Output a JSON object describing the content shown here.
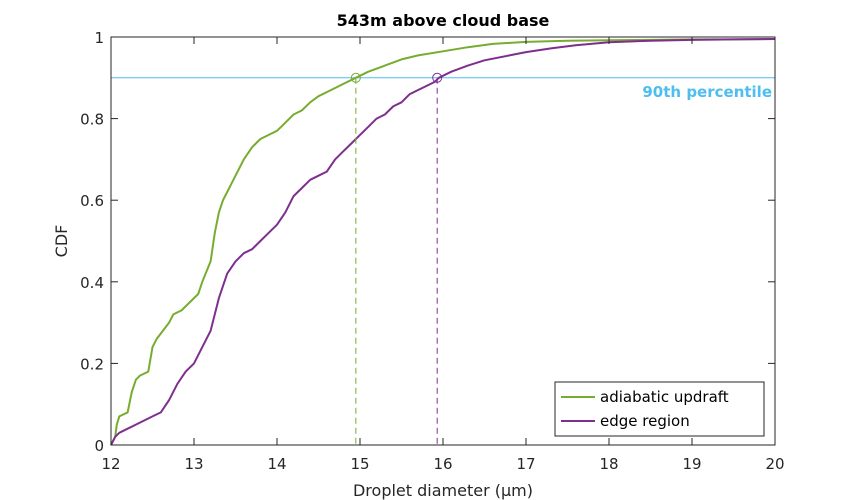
{
  "chart_data": {
    "type": "line",
    "title": "543m above cloud base",
    "xlabel": "Droplet diameter (μm)",
    "ylabel": "CDF",
    "xlim": [
      12,
      20
    ],
    "ylim": [
      0,
      1
    ],
    "xticks": [
      "12",
      "13",
      "14",
      "15",
      "16",
      "17",
      "18",
      "19",
      "20"
    ],
    "yticks": [
      "0",
      "0.2",
      "0.4",
      "0.6",
      "0.8",
      "1"
    ],
    "grid": false,
    "legend_position": "bottom-right",
    "series": [
      {
        "name": "adiabatic updraft",
        "color": "#77ac30",
        "x": [
          12.0,
          12.05,
          12.07,
          12.1,
          12.2,
          12.25,
          12.3,
          12.35,
          12.45,
          12.5,
          12.55,
          12.7,
          12.75,
          12.85,
          13.0,
          13.05,
          13.1,
          13.2,
          13.25,
          13.3,
          13.35,
          13.4,
          13.45,
          13.5,
          13.6,
          13.7,
          13.8,
          13.9,
          14.0,
          14.05,
          14.1,
          14.2,
          14.3,
          14.4,
          14.5,
          14.6,
          14.7,
          14.8,
          14.9,
          14.95,
          15.1,
          15.3,
          15.5,
          15.7,
          16.0,
          16.3,
          16.6,
          17.0,
          17.5,
          18.0,
          18.5,
          19.0,
          19.5,
          20.0
        ],
        "y": [
          0.0,
          0.02,
          0.05,
          0.07,
          0.08,
          0.13,
          0.16,
          0.17,
          0.18,
          0.24,
          0.26,
          0.3,
          0.32,
          0.33,
          0.36,
          0.37,
          0.4,
          0.45,
          0.52,
          0.57,
          0.6,
          0.62,
          0.64,
          0.66,
          0.7,
          0.73,
          0.75,
          0.76,
          0.77,
          0.78,
          0.79,
          0.81,
          0.82,
          0.84,
          0.855,
          0.865,
          0.875,
          0.885,
          0.895,
          0.9,
          0.915,
          0.93,
          0.945,
          0.955,
          0.965,
          0.975,
          0.983,
          0.988,
          0.991,
          0.992,
          0.993,
          0.994,
          0.994,
          0.995
        ],
        "percentile_90_x": 14.95
      },
      {
        "name": "edge region",
        "color": "#7e2f8e",
        "x": [
          12.0,
          12.05,
          12.1,
          12.2,
          12.3,
          12.4,
          12.5,
          12.6,
          12.7,
          12.8,
          12.9,
          13.0,
          13.1,
          13.2,
          13.3,
          13.35,
          13.4,
          13.5,
          13.6,
          13.7,
          13.8,
          13.9,
          14.0,
          14.1,
          14.2,
          14.3,
          14.4,
          14.5,
          14.6,
          14.7,
          14.8,
          14.9,
          15.0,
          15.1,
          15.2,
          15.3,
          15.4,
          15.5,
          15.6,
          15.7,
          15.8,
          15.9,
          15.95,
          16.1,
          16.3,
          16.5,
          16.8,
          17.0,
          17.3,
          17.6,
          18.0,
          18.5,
          19.0,
          19.5,
          20.0
        ],
        "y": [
          0.0,
          0.02,
          0.03,
          0.04,
          0.05,
          0.06,
          0.07,
          0.08,
          0.11,
          0.15,
          0.18,
          0.2,
          0.24,
          0.28,
          0.36,
          0.39,
          0.42,
          0.45,
          0.47,
          0.48,
          0.5,
          0.52,
          0.54,
          0.57,
          0.61,
          0.63,
          0.65,
          0.66,
          0.67,
          0.7,
          0.72,
          0.74,
          0.76,
          0.78,
          0.8,
          0.81,
          0.83,
          0.84,
          0.86,
          0.87,
          0.88,
          0.89,
          0.9,
          0.915,
          0.93,
          0.943,
          0.955,
          0.963,
          0.972,
          0.98,
          0.987,
          0.991,
          0.993,
          0.994,
          0.995
        ],
        "percentile_90_x": 15.93
      }
    ],
    "reference_line": {
      "y": 0.9,
      "label": "90th percentile",
      "color": "#4dbeee"
    }
  }
}
